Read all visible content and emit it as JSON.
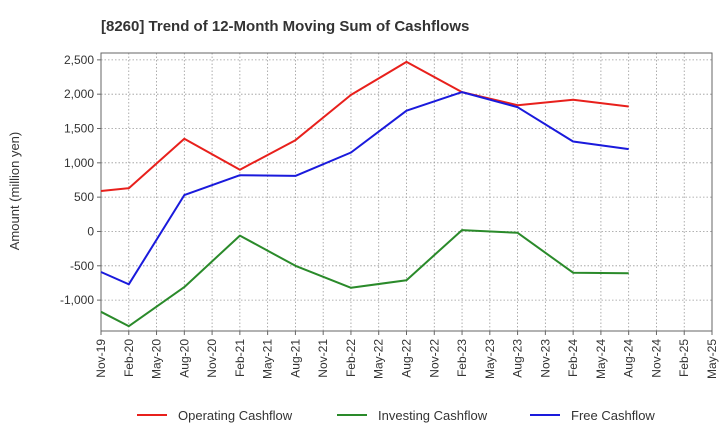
{
  "chart_data": {
    "type": "line",
    "title": "[8260]  Trend of 12-Month Moving Sum of Cashflows",
    "xlabel": "",
    "ylabel": "Amount (million yen)",
    "ylim": [
      -1450,
      2600
    ],
    "yticks": [
      2500,
      2000,
      1500,
      1000,
      500,
      0,
      -500,
      -1000
    ],
    "ytick_labels": [
      "2,500",
      "2,000",
      "1,500",
      "1,000",
      "500",
      "0",
      "-500",
      "-1,000"
    ],
    "categories": [
      "Nov-19",
      "Feb-20",
      "May-20",
      "Aug-20",
      "Nov-20",
      "Feb-21",
      "May-21",
      "Aug-21",
      "Nov-21",
      "Feb-22",
      "May-22",
      "Aug-22",
      "Nov-22",
      "Feb-23",
      "May-23",
      "Aug-23",
      "Nov-23",
      "Feb-24",
      "May-24",
      "Aug-24",
      "Nov-24",
      "Feb-25",
      "May-25"
    ],
    "grid": true,
    "legend_position": "bottom",
    "series": [
      {
        "name": "Operating Cashflow",
        "color": "#e8201c",
        "values": [
          590,
          630,
          null,
          1350,
          null,
          900,
          null,
          1330,
          null,
          1990,
          null,
          2470,
          null,
          2030,
          null,
          1840,
          null,
          1920,
          null,
          1820,
          null,
          null,
          null
        ]
      },
      {
        "name": "Investing Cashflow",
        "color": "#2a8a2a",
        "values": [
          -1170,
          -1380,
          null,
          -810,
          null,
          -60,
          null,
          -500,
          null,
          -820,
          null,
          -710,
          null,
          20,
          null,
          -20,
          null,
          -600,
          null,
          -610,
          null,
          null,
          null
        ]
      },
      {
        "name": "Free Cashflow",
        "color": "#1a1adc",
        "values": [
          -590,
          -770,
          null,
          530,
          null,
          820,
          null,
          810,
          null,
          1150,
          null,
          1760,
          null,
          2030,
          null,
          1810,
          null,
          1310,
          null,
          1200,
          null,
          null,
          null
        ]
      }
    ]
  }
}
